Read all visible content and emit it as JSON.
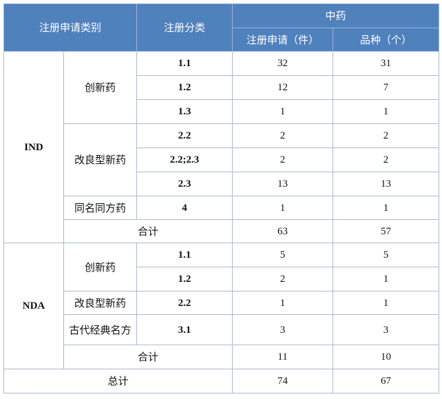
{
  "header": {
    "col1": "注册申请类别",
    "col2": "注册分类",
    "group": "中药",
    "col4": "注册申请（件）",
    "col5": "品种（个）"
  },
  "ind": {
    "label": "IND",
    "groups": [
      {
        "name": "创新药",
        "rows": [
          [
            "1.1",
            "32",
            "31"
          ],
          [
            "1.2",
            "12",
            "7"
          ],
          [
            "1.3",
            "1",
            "1"
          ]
        ]
      },
      {
        "name": "改良型新药",
        "rows": [
          [
            "2.2",
            "2",
            "2"
          ],
          [
            "2.2;2.3",
            "2",
            "2"
          ],
          [
            "2.3",
            "13",
            "13"
          ]
        ]
      },
      {
        "name": "同名同方药",
        "rows": [
          [
            "4",
            "1",
            "1"
          ]
        ]
      }
    ],
    "subtotal": {
      "label": "合计",
      "applications": "63",
      "varieties": "57"
    }
  },
  "nda": {
    "label": "NDA",
    "groups": [
      {
        "name": "创新药",
        "rows": [
          [
            "1.1",
            "5",
            "5"
          ],
          [
            "1.2",
            "2",
            "1"
          ]
        ]
      },
      {
        "name": "改良型新药",
        "rows": [
          [
            "2.2",
            "1",
            "1"
          ]
        ]
      },
      {
        "name": "古代经典名方",
        "rows": [
          [
            "3.1",
            "3",
            "3"
          ]
        ]
      }
    ],
    "subtotal": {
      "label": "合计",
      "applications": "11",
      "varieties": "10"
    }
  },
  "total": {
    "label": "总计",
    "applications": "74",
    "varieties": "67"
  },
  "colors": {
    "header_bg": "#4f81bd",
    "border": "#4a6fa5"
  }
}
